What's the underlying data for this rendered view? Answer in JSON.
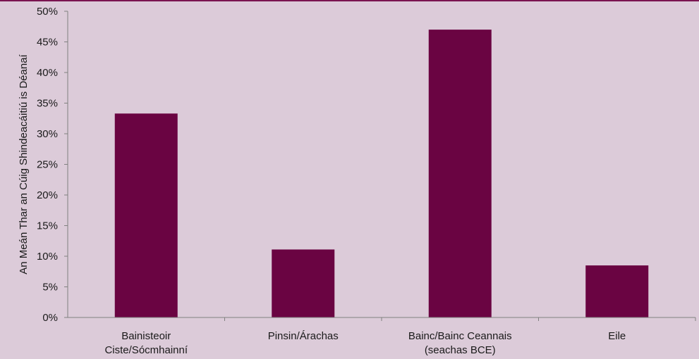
{
  "chart_data": {
    "type": "bar",
    "categories": [
      [
        "Bainisteoir",
        "Ciste/Sócmhainní"
      ],
      [
        "Pinsin/Árachas"
      ],
      [
        "Bainc/Bainc Ceannais",
        "(seachas BCE)"
      ],
      [
        "Eile"
      ]
    ],
    "values": [
      0.333,
      0.111,
      0.47,
      0.085
    ],
    "ylabel": "An Meán Thar an Cúig Shindeacáitiú is Déanaí",
    "ylim": [
      0,
      0.5
    ],
    "yticks": [
      0,
      0.05,
      0.1,
      0.15,
      0.2,
      0.25,
      0.3,
      0.35,
      0.4,
      0.45,
      0.5
    ],
    "ytick_labels": [
      "0%",
      "5%",
      "10%",
      "15%",
      "20%",
      "25%",
      "30%",
      "35%",
      "40%",
      "45%",
      "50%"
    ],
    "grid": false,
    "legend": "none",
    "colors": {
      "bar": "#6a0442",
      "background": "#dccbd9",
      "axis": "#808080",
      "frame": "#7a1450"
    }
  }
}
